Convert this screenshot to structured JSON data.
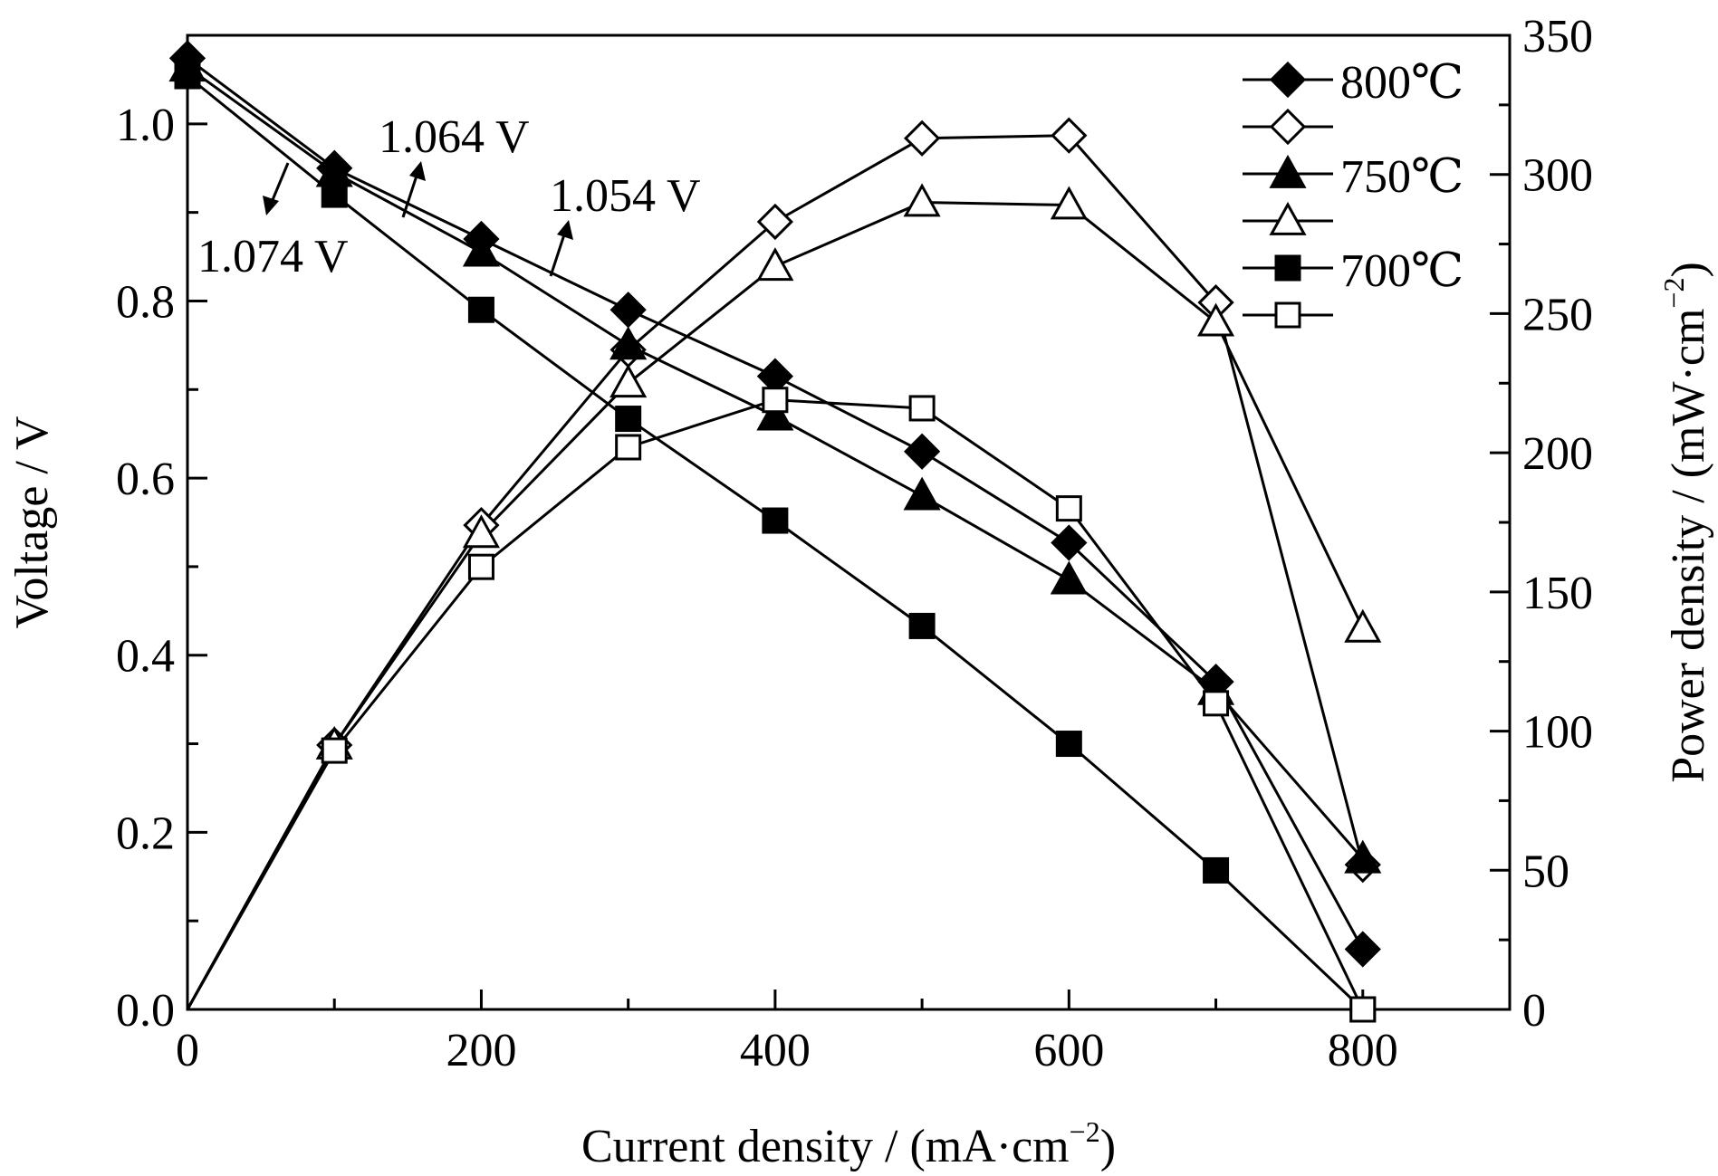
{
  "chart_data": {
    "type": "line",
    "xlabel": "Current density / (mA·cm",
    "xlabel_sup": "−2",
    "xlabel_end": ")",
    "ylabel": "Voltage / V",
    "y2label": "Power density / (mW·cm",
    "y2label_sup": "−2",
    "y2label_end": ")",
    "xlim": [
      0,
      900
    ],
    "ylim": [
      0,
      1.1
    ],
    "y2lim": [
      0,
      350
    ],
    "x_ticks": [
      0,
      200,
      400,
      600,
      800
    ],
    "x_tick_labels": [
      "0",
      "200",
      "400",
      "600",
      "800"
    ],
    "y_ticks": [
      0,
      0.2,
      0.4,
      0.6,
      0.8,
      1.0
    ],
    "y_tick_labels": [
      "0.0",
      "0.2",
      "0.4",
      "0.6",
      "0.8",
      "1.0"
    ],
    "y2_ticks": [
      0,
      50,
      100,
      150,
      200,
      250,
      300,
      350
    ],
    "y2_tick_labels": [
      "0",
      "50",
      "100",
      "150",
      "200",
      "250",
      "300",
      "350"
    ],
    "grid": false,
    "legend_position": "top-right",
    "annotations": [
      "1.074 V",
      "1.064 V",
      "1.054 V"
    ],
    "series": [
      {
        "name": "800℃",
        "axis": "left",
        "marker": "diamond-filled",
        "x": [
          0,
          100,
          200,
          300,
          400,
          500,
          600,
          700,
          800
        ],
        "values": [
          1.074,
          0.95,
          0.87,
          0.79,
          0.715,
          0.63,
          0.527,
          0.37,
          0.068
        ]
      },
      {
        "name": "",
        "axis": "right",
        "marker": "diamond-open",
        "x": [
          0,
          100,
          200,
          300,
          400,
          500,
          600,
          700,
          800
        ],
        "values": [
          0,
          95,
          174,
          237,
          283,
          313,
          314,
          254,
          52
        ]
      },
      {
        "name": "750℃",
        "axis": "left",
        "marker": "triangle-filled",
        "x": [
          0,
          100,
          200,
          300,
          400,
          500,
          600,
          700,
          800
        ],
        "values": [
          1.064,
          0.945,
          0.855,
          0.75,
          0.67,
          0.58,
          0.485,
          0.36,
          0.17
        ]
      },
      {
        "name": "",
        "axis": "right",
        "marker": "triangle-open",
        "x": [
          0,
          100,
          200,
          300,
          400,
          500,
          600,
          700,
          800
        ],
        "values": [
          0,
          95,
          171,
          225,
          267,
          290,
          289,
          247,
          137
        ]
      },
      {
        "name": "700℃",
        "axis": "left",
        "marker": "square-filled",
        "x": [
          0,
          100,
          200,
          300,
          400,
          500,
          600,
          700,
          800
        ],
        "values": [
          1.054,
          0.92,
          0.79,
          0.667,
          0.552,
          0.433,
          0.3,
          0.157,
          0.0
        ]
      },
      {
        "name": "",
        "axis": "right",
        "marker": "square-open",
        "x": [
          0,
          100,
          200,
          300,
          400,
          500,
          600,
          700,
          800
        ],
        "values": [
          0,
          93,
          159,
          202,
          219,
          216,
          180,
          110,
          0
        ]
      }
    ]
  }
}
